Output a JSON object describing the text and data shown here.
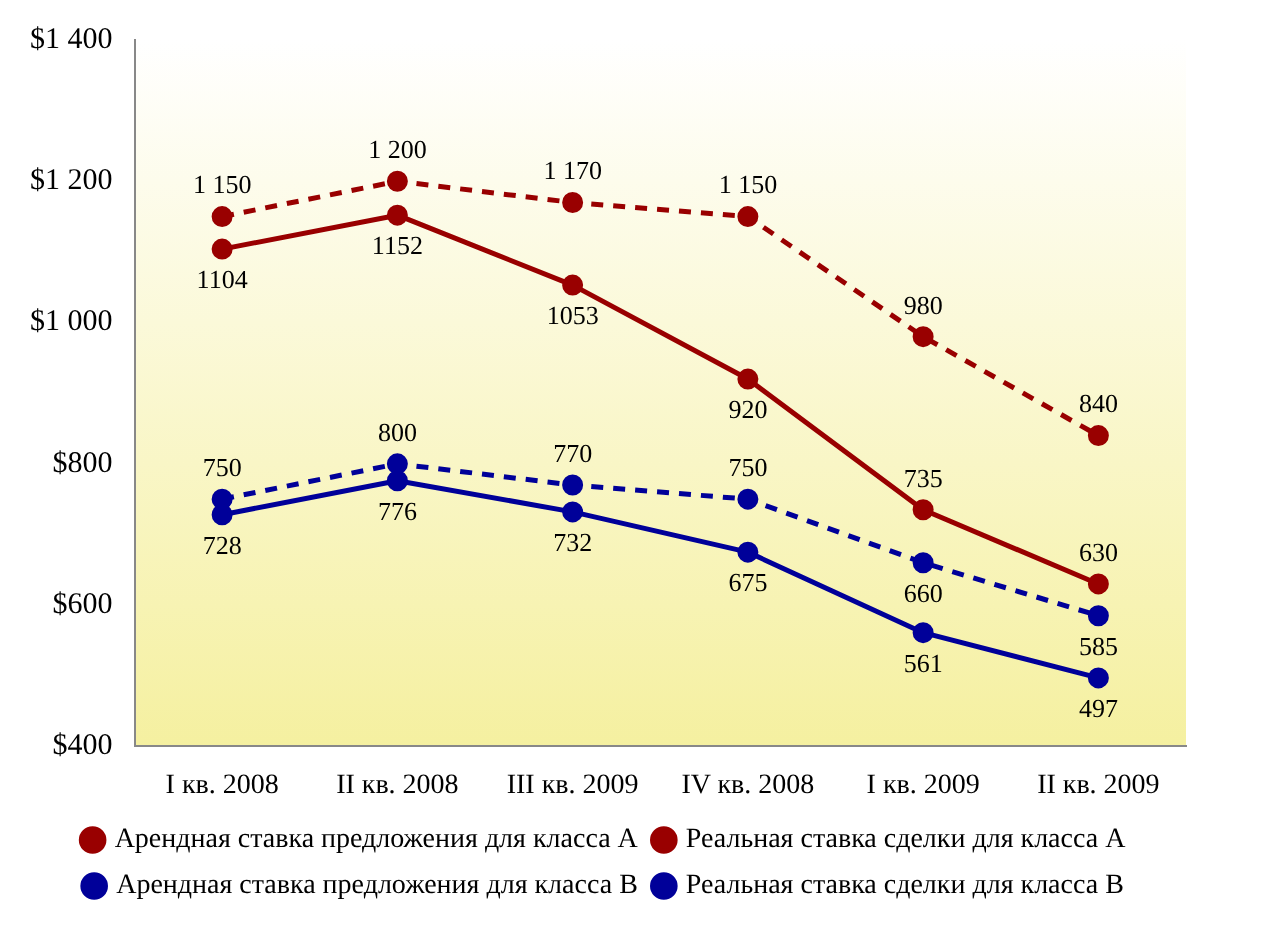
{
  "chart_data": {
    "type": "line",
    "categories": [
      "I кв. 2008",
      "II кв. 2008",
      "III кв. 2009",
      "IV кв. 2008",
      "I кв. 2009",
      "II кв. 2009"
    ],
    "ylim": [
      400,
      1400
    ],
    "yticks": [
      {
        "value": 400,
        "label": "$400"
      },
      {
        "value": 600,
        "label": "$600"
      },
      {
        "value": 800,
        "label": "$800"
      },
      {
        "value": 1000,
        "label": "$1 000"
      },
      {
        "value": 1200,
        "label": "$1 200"
      },
      {
        "value": 1400,
        "label": "$1 400"
      }
    ],
    "legend": "bottom",
    "marker": "circle",
    "grid": false,
    "series": [
      {
        "name": "Арендная ставка предложения для класса А",
        "color": "#990000",
        "line_style": "dashed",
        "values": [
          1150,
          1200,
          1170,
          1150,
          980,
          840
        ],
        "value_labels": [
          "1 150",
          "1 200",
          "1 170",
          "1 150",
          "980",
          "840"
        ]
      },
      {
        "name": "Реальная ставка сделки для класса А",
        "color": "#990000",
        "line_style": "solid",
        "values": [
          1104,
          1152,
          1053,
          920,
          735,
          630
        ],
        "value_labels": [
          "1104",
          "1152",
          "1053",
          "920",
          "735",
          "630"
        ]
      },
      {
        "name": "Арендная ставка предложения для класса В",
        "color": "#000099",
        "line_style": "dashed",
        "values": [
          750,
          800,
          770,
          750,
          660,
          585
        ],
        "value_labels": [
          "750",
          "800",
          "770",
          "750",
          "660",
          "585"
        ]
      },
      {
        "name": "Реальная ставка сделки для класса В",
        "color": "#000099",
        "line_style": "solid",
        "values": [
          728,
          776,
          732,
          675,
          561,
          497
        ],
        "value_labels": [
          "728",
          "776",
          "732",
          "675",
          "561",
          "497"
        ]
      }
    ]
  }
}
